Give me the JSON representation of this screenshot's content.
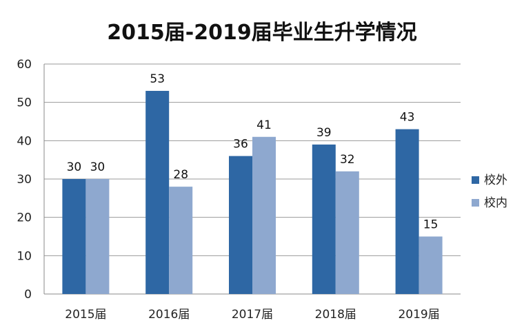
{
  "chart_data": {
    "type": "bar",
    "title": "2015届-2019届毕业生升学情况",
    "categories": [
      "2015届",
      "2016届",
      "2017届",
      "2018届",
      "2019届"
    ],
    "series": [
      {
        "name": "校外",
        "values": [
          30,
          53,
          36,
          39,
          43
        ],
        "color": "#2e67a4"
      },
      {
        "name": "校内",
        "values": [
          30,
          28,
          41,
          32,
          15
        ],
        "color": "#8ea8cf"
      }
    ],
    "ylim": [
      0,
      60
    ],
    "yticks": [
      0,
      10,
      20,
      30,
      40,
      50,
      60
    ],
    "xlabel": "",
    "ylabel": "",
    "grid": true,
    "legend_position": "right"
  }
}
